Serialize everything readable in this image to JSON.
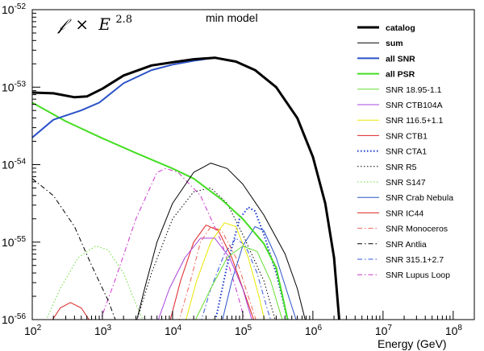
{
  "chart_data": {
    "type": "line",
    "title": "min model",
    "formula": {
      "symbol": "𝒻",
      "times": "×",
      "base": "E",
      "exponent": "2.8"
    },
    "xlabel": "Energy (GeV)",
    "ylabel": "",
    "xscale": "log",
    "yscale": "log",
    "xlim": [
      100,
      200000000
    ],
    "ylim": [
      1e-56,
      1e-52
    ],
    "x_ticks": [
      {
        "base": "10",
        "exp": "2"
      },
      {
        "base": "10",
        "exp": "3"
      },
      {
        "base": "10",
        "exp": "4"
      },
      {
        "base": "10",
        "exp": "5"
      },
      {
        "base": "10",
        "exp": "6"
      },
      {
        "base": "10",
        "exp": "7"
      },
      {
        "base": "10",
        "exp": "8"
      }
    ],
    "y_ticks": [
      {
        "base": "10",
        "exp": "-56"
      },
      {
        "base": "10",
        "exp": "-55"
      },
      {
        "base": "10",
        "exp": "-54"
      },
      {
        "base": "10",
        "exp": "-53"
      },
      {
        "base": "10",
        "exp": "-52"
      }
    ],
    "legend_position": "top-right",
    "series": [
      {
        "name": "catalog",
        "color": "#000000",
        "style": "solid",
        "width": 3,
        "points": [
          [
            100,
            -53.07
          ],
          [
            200,
            -53.08
          ],
          [
            400,
            -53.13
          ],
          [
            600,
            -53.12
          ],
          [
            1000,
            -53.02
          ],
          [
            2000,
            -52.85
          ],
          [
            5000,
            -52.72
          ],
          [
            10000,
            -52.68
          ],
          [
            20000,
            -52.64
          ],
          [
            40000,
            -52.62
          ],
          [
            80000,
            -52.67
          ],
          [
            150000,
            -52.78
          ],
          [
            300000,
            -53.0
          ],
          [
            600000,
            -53.4
          ],
          [
            1000000,
            -53.9
          ],
          [
            1500000,
            -54.5
          ],
          [
            2000000,
            -55.2
          ],
          [
            2400000,
            -56.05
          ]
        ]
      },
      {
        "name": "sum",
        "color": "#000000",
        "style": "solid",
        "width": 1,
        "points": [
          [
            3000,
            -56.05
          ],
          [
            4000,
            -55.6
          ],
          [
            6000,
            -55.0
          ],
          [
            10000,
            -54.5
          ],
          [
            20000,
            -54.1
          ],
          [
            35000,
            -53.98
          ],
          [
            60000,
            -54.05
          ],
          [
            100000,
            -54.25
          ],
          [
            200000,
            -54.65
          ],
          [
            400000,
            -55.15
          ],
          [
            600000,
            -55.6
          ],
          [
            800000,
            -56.05
          ]
        ]
      },
      {
        "name": "all SNR",
        "color": "#2b52c8",
        "style": "solid",
        "width": 2,
        "points": [
          [
            100,
            -53.65
          ],
          [
            200,
            -53.42
          ],
          [
            500,
            -53.3
          ],
          [
            900,
            -53.2
          ],
          [
            2000,
            -52.95
          ],
          [
            5000,
            -52.78
          ],
          [
            10000,
            -52.71
          ],
          [
            20000,
            -52.66
          ],
          [
            40000,
            -52.62
          ],
          [
            80000,
            -52.67
          ],
          [
            150000,
            -52.78
          ],
          [
            300000,
            -53.0
          ],
          [
            600000,
            -53.4
          ],
          [
            1000000,
            -53.9
          ],
          [
            1500000,
            -54.5
          ],
          [
            2000000,
            -55.2
          ],
          [
            2400000,
            -56.05
          ]
        ]
      },
      {
        "name": "all PSR",
        "color": "#44dd22",
        "style": "solid",
        "width": 2,
        "points": [
          [
            100,
            -53.2
          ],
          [
            300,
            -53.44
          ],
          [
            1000,
            -53.66
          ],
          [
            3000,
            -53.85
          ],
          [
            10000,
            -54.05
          ],
          [
            20000,
            -54.18
          ],
          [
            50000,
            -54.45
          ],
          [
            100000,
            -54.7
          ],
          [
            200000,
            -55.02
          ],
          [
            300000,
            -55.33
          ],
          [
            450000,
            -56.05
          ]
        ]
      },
      {
        "name": "SNR 18.95-1.1",
        "color": "#66dd33",
        "style": "solid",
        "width": 1,
        "points": [
          [
            20000,
            -56.05
          ],
          [
            35000,
            -55.6
          ],
          [
            60000,
            -55.2
          ],
          [
            100000,
            -55.05
          ],
          [
            160000,
            -55.12
          ],
          [
            250000,
            -55.5
          ],
          [
            380000,
            -56.05
          ]
        ]
      },
      {
        "name": "SNR CTB104A",
        "color": "#aa44dd",
        "style": "solid",
        "width": 1,
        "points": [
          [
            6000,
            -56.05
          ],
          [
            9000,
            -55.6
          ],
          [
            15000,
            -55.2
          ],
          [
            25000,
            -54.95
          ],
          [
            40000,
            -54.95
          ],
          [
            65000,
            -55.2
          ],
          [
            100000,
            -55.6
          ],
          [
            140000,
            -56.05
          ]
        ]
      },
      {
        "name": "SNR 116.5+1.1",
        "color": "#e8e800",
        "style": "solid",
        "width": 1,
        "points": [
          [
            15000,
            -56.05
          ],
          [
            22000,
            -55.5
          ],
          [
            35000,
            -55.0
          ],
          [
            55000,
            -54.75
          ],
          [
            80000,
            -54.8
          ],
          [
            120000,
            -55.2
          ],
          [
            170000,
            -55.7
          ],
          [
            210000,
            -56.05
          ]
        ]
      },
      {
        "name": "SNR CTB1",
        "color": "#dd2222",
        "style": "solid",
        "width": 1,
        "points": [
          [
            9000,
            -56.05
          ],
          [
            13000,
            -55.5
          ],
          [
            20000,
            -55.0
          ],
          [
            30000,
            -54.78
          ],
          [
            45000,
            -54.85
          ],
          [
            70000,
            -55.2
          ],
          [
            110000,
            -55.7
          ],
          [
            150000,
            -56.05
          ]
        ]
      },
      {
        "name": "SNR CTA1",
        "color": "#1133cc",
        "style": "dotted",
        "width": 2,
        "points": [
          [
            40000,
            -56.05
          ],
          [
            60000,
            -55.3
          ],
          [
            90000,
            -54.7
          ],
          [
            120000,
            -54.55
          ],
          [
            150000,
            -54.6
          ],
          [
            200000,
            -54.9
          ],
          [
            300000,
            -55.4
          ],
          [
            450000,
            -56.05
          ]
        ]
      },
      {
        "name": "SNR R5",
        "color": "#000000",
        "style": "dotted",
        "width": 1,
        "points": [
          [
            3000,
            -56.05
          ],
          [
            5000,
            -55.4
          ],
          [
            10000,
            -54.7
          ],
          [
            20000,
            -54.35
          ],
          [
            35000,
            -54.3
          ],
          [
            60000,
            -54.5
          ],
          [
            100000,
            -54.9
          ],
          [
            200000,
            -55.5
          ],
          [
            300000,
            -56.05
          ]
        ]
      },
      {
        "name": "SNR S147",
        "color": "#66dd33",
        "style": "dotted",
        "width": 1,
        "points": [
          [
            150,
            -56.05
          ],
          [
            250,
            -55.6
          ],
          [
            450,
            -55.2
          ],
          [
            800,
            -55.05
          ],
          [
            1200,
            -55.1
          ],
          [
            2000,
            -55.4
          ],
          [
            3000,
            -55.8
          ],
          [
            4000,
            -56.05
          ]
        ]
      },
      {
        "name": "SNR Crab Nebula",
        "color": "#2b52c8",
        "style": "solid",
        "width": 1,
        "points": [
          [
            50000,
            -56.05
          ],
          [
            70000,
            -55.5
          ],
          [
            100000,
            -55.05
          ],
          [
            150000,
            -54.8
          ],
          [
            200000,
            -54.85
          ],
          [
            300000,
            -55.2
          ],
          [
            450000,
            -55.7
          ],
          [
            600000,
            -56.05
          ]
        ]
      },
      {
        "name": "SNR IC44",
        "color": "#dd2222",
        "style": "solid",
        "width": 1,
        "points": [
          [
            180,
            -56.05
          ],
          [
            250,
            -55.85
          ],
          [
            350,
            -55.78
          ],
          [
            500,
            -55.85
          ],
          [
            700,
            -56.05
          ]
        ]
      },
      {
        "name": "SNR Monoceros",
        "color": "#ee6655",
        "style": "dashdot",
        "width": 1,
        "points": [
          [
            12000,
            -56.05
          ],
          [
            18000,
            -55.5
          ],
          [
            25000,
            -55.0
          ],
          [
            35000,
            -54.8
          ],
          [
            50000,
            -54.85
          ],
          [
            80000,
            -55.2
          ],
          [
            120000,
            -55.7
          ],
          [
            160000,
            -56.05
          ]
        ]
      },
      {
        "name": "SNR Antlia",
        "color": "#000000",
        "style": "dashdot",
        "width": 1,
        "points": [
          [
            100,
            -54.18
          ],
          [
            200,
            -54.4
          ],
          [
            400,
            -54.8
          ],
          [
            700,
            -55.3
          ],
          [
            1200,
            -55.75
          ],
          [
            1600,
            -56.05
          ]
        ]
      },
      {
        "name": "SNR 315.1+2.7",
        "color": "#3355dd",
        "style": "dashdot",
        "width": 1,
        "points": [
          [
            25000,
            -56.05
          ],
          [
            35000,
            -55.6
          ],
          [
            55000,
            -55.15
          ],
          [
            80000,
            -54.95
          ],
          [
            110000,
            -55.05
          ],
          [
            160000,
            -55.4
          ],
          [
            230000,
            -55.9
          ],
          [
            260000,
            -56.05
          ]
        ]
      },
      {
        "name": "SNR Lupus Loop",
        "color": "#cc33cc",
        "style": "dashdot",
        "width": 1,
        "points": [
          [
            900,
            -56.05
          ],
          [
            1500,
            -55.5
          ],
          [
            3000,
            -54.7
          ],
          [
            6000,
            -54.1
          ],
          [
            8000,
            -54.05
          ],
          [
            12000,
            -54.1
          ],
          [
            25000,
            -54.4
          ],
          [
            50000,
            -55.0
          ],
          [
            80000,
            -55.6
          ],
          [
            110000,
            -56.05
          ]
        ]
      }
    ]
  }
}
